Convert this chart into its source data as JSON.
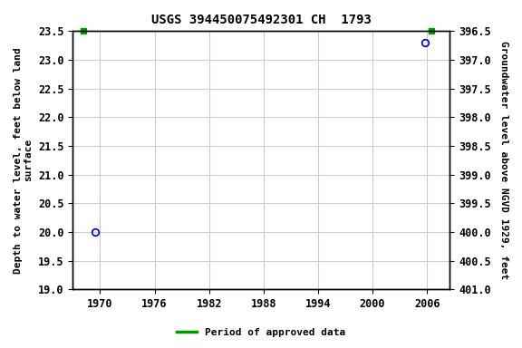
{
  "title": "USGS 394450075492301 CH  1793",
  "points": [
    {
      "x": 1969.5,
      "y_depth": 20.0
    },
    {
      "x": 2005.8,
      "y_depth": 23.3
    }
  ],
  "green_squares": [
    {
      "x": 1968.2
    },
    {
      "x": 2006.5
    }
  ],
  "xlim": [
    1967.0,
    2008.5
  ],
  "xticks": [
    1970,
    1976,
    1982,
    1988,
    1994,
    2000,
    2006
  ],
  "ylim_left_top": 19.0,
  "ylim_left_bottom": 23.5,
  "yticks_left": [
    19.0,
    19.5,
    20.0,
    20.5,
    21.0,
    21.5,
    22.0,
    22.5,
    23.0,
    23.5
  ],
  "ylim_right_top": 401.0,
  "ylim_right_bottom": 396.5,
  "yticks_right": [
    401.0,
    400.5,
    400.0,
    399.5,
    399.0,
    398.5,
    398.0,
    397.5,
    397.0,
    396.5
  ],
  "ylabel_left": "Depth to water level, feet below land\nsurface",
  "ylabel_right": "Groundwater level above NGVD 1929, feet",
  "legend_label": "Period of approved data",
  "legend_color": "#009900",
  "point_color": "#0000cc",
  "grid_color": "#cccccc",
  "bg_color": "#ffffff",
  "title_fontsize": 10,
  "label_fontsize": 8,
  "tick_fontsize": 8.5
}
